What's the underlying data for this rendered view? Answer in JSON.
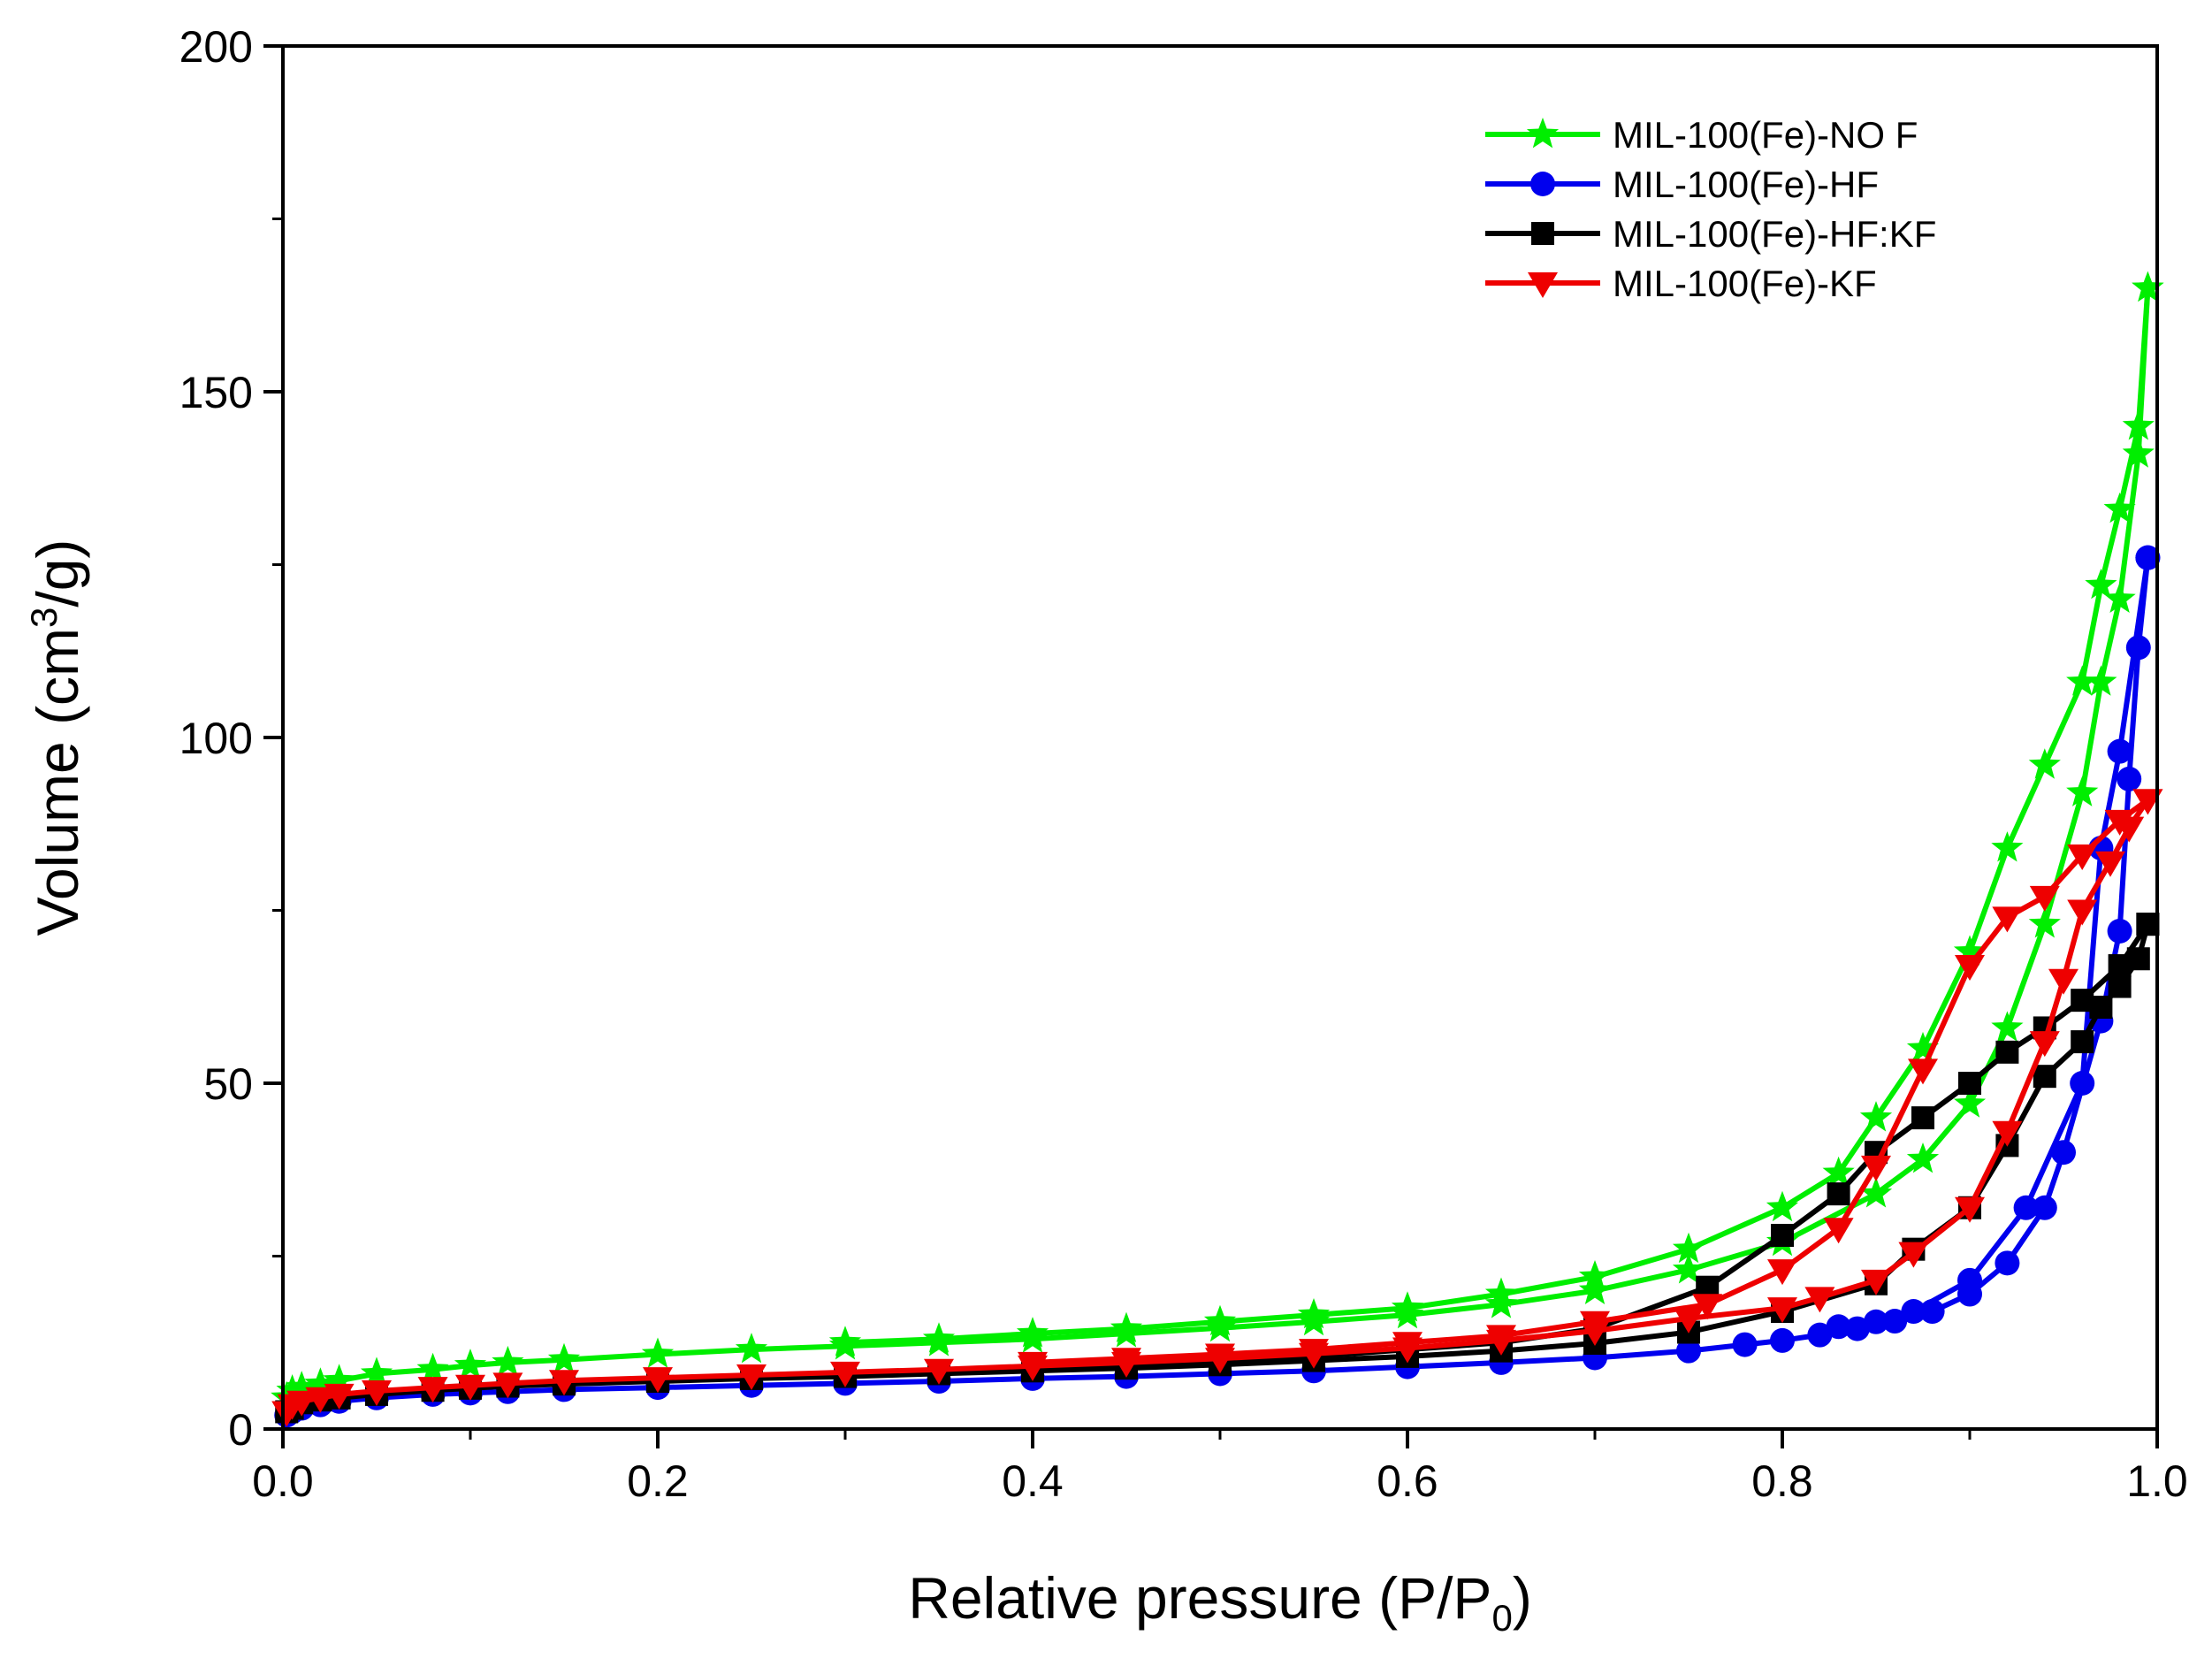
{
  "chart_data": {
    "type": "line",
    "title": "",
    "xlabel": {
      "main": "Relative pressure (P/P",
      "sub": "0",
      "tail": ")"
    },
    "ylabel": {
      "main": "Volume (cm",
      "sup": "3",
      "tail": "/g)"
    },
    "xlim": [
      0,
      1.0
    ],
    "ylim": [
      0,
      200
    ],
    "xticks": [
      0.0,
      0.2,
      0.4,
      0.6,
      0.8,
      1.0
    ],
    "xtick_labels": [
      "0.0",
      "0.2",
      "0.4",
      "0.6",
      "0.8",
      "1.0"
    ],
    "yticks": [
      0,
      50,
      100,
      150,
      200
    ],
    "ytick_labels": [
      "0",
      "50",
      "100",
      "150",
      "200"
    ],
    "grid": false,
    "legend_position": "top-right",
    "series": [
      {
        "name": "MIL-100(Fe)-NO F",
        "color": "#00ee00",
        "marker": "star",
        "adsorption": [
          [
            0.002,
            4.5
          ],
          [
            0.005,
            5.5
          ],
          [
            0.01,
            6.0
          ],
          [
            0.02,
            6.5
          ],
          [
            0.03,
            7.0
          ],
          [
            0.05,
            8.0
          ],
          [
            0.08,
            8.6
          ],
          [
            0.1,
            9.2
          ],
          [
            0.12,
            9.6
          ],
          [
            0.15,
            10.0
          ],
          [
            0.2,
            10.8
          ],
          [
            0.25,
            11.5
          ],
          [
            0.3,
            12.0
          ],
          [
            0.35,
            12.5
          ],
          [
            0.4,
            13.0
          ],
          [
            0.45,
            13.8
          ],
          [
            0.5,
            14.6
          ],
          [
            0.55,
            15.5
          ],
          [
            0.6,
            16.5
          ],
          [
            0.65,
            18.0
          ],
          [
            0.7,
            20.0
          ],
          [
            0.75,
            23.0
          ],
          [
            0.8,
            27.0
          ],
          [
            0.85,
            34.0
          ],
          [
            0.875,
            39.0
          ],
          [
            0.9,
            47.0
          ],
          [
            0.92,
            58.0
          ],
          [
            0.94,
            73.0
          ],
          [
            0.96,
            92.0
          ],
          [
            0.97,
            108.0
          ],
          [
            0.98,
            120.0
          ],
          [
            0.99,
            141.0
          ],
          [
            0.995,
            165.0
          ]
        ],
        "desorption": [
          [
            0.995,
            165.0
          ],
          [
            0.99,
            145.0
          ],
          [
            0.98,
            133.0
          ],
          [
            0.97,
            122.0
          ],
          [
            0.96,
            108.0
          ],
          [
            0.94,
            96.0
          ],
          [
            0.92,
            84.0
          ],
          [
            0.9,
            69.0
          ],
          [
            0.875,
            55.0
          ],
          [
            0.85,
            45.0
          ],
          [
            0.83,
            37.0
          ],
          [
            0.8,
            32.0
          ],
          [
            0.75,
            26.0
          ],
          [
            0.7,
            22.0
          ],
          [
            0.65,
            19.5
          ],
          [
            0.6,
            17.5
          ],
          [
            0.55,
            16.5
          ],
          [
            0.5,
            15.5
          ],
          [
            0.45,
            14.5
          ],
          [
            0.4,
            13.8
          ],
          [
            0.35,
            13.0
          ],
          [
            0.3,
            12.5
          ]
        ]
      },
      {
        "name": "MIL-100(Fe)-HF",
        "color": "#0000ee",
        "marker": "circle",
        "adsorption": [
          [
            0.002,
            2.0
          ],
          [
            0.005,
            2.5
          ],
          [
            0.01,
            3.0
          ],
          [
            0.02,
            3.5
          ],
          [
            0.03,
            4.0
          ],
          [
            0.05,
            4.5
          ],
          [
            0.08,
            5.0
          ],
          [
            0.1,
            5.2
          ],
          [
            0.12,
            5.4
          ],
          [
            0.15,
            5.7
          ],
          [
            0.2,
            6.0
          ],
          [
            0.25,
            6.3
          ],
          [
            0.3,
            6.6
          ],
          [
            0.35,
            6.9
          ],
          [
            0.4,
            7.3
          ],
          [
            0.45,
            7.6
          ],
          [
            0.5,
            8.0
          ],
          [
            0.55,
            8.4
          ],
          [
            0.6,
            9.0
          ],
          [
            0.65,
            9.6
          ],
          [
            0.7,
            10.3
          ],
          [
            0.75,
            11.3
          ],
          [
            0.78,
            12.2
          ],
          [
            0.8,
            12.8
          ],
          [
            0.82,
            13.6
          ],
          [
            0.84,
            14.5
          ],
          [
            0.86,
            15.6
          ],
          [
            0.88,
            17.0
          ],
          [
            0.9,
            19.5
          ],
          [
            0.92,
            24.0
          ],
          [
            0.94,
            32.0
          ],
          [
            0.95,
            40.0
          ],
          [
            0.97,
            59.0
          ],
          [
            0.98,
            72.0
          ],
          [
            0.985,
            94.0
          ],
          [
            0.99,
            113.0
          ],
          [
            0.995,
            126.0
          ]
        ],
        "desorption": [
          [
            0.995,
            126.0
          ],
          [
            0.98,
            98.0
          ],
          [
            0.97,
            84.0
          ],
          [
            0.96,
            50.0
          ],
          [
            0.93,
            32.0
          ],
          [
            0.9,
            21.5
          ],
          [
            0.87,
            17.0
          ],
          [
            0.85,
            15.5
          ],
          [
            0.83,
            14.8
          ]
        ]
      },
      {
        "name": "MIL-100(Fe)-HF:KF",
        "color": "#000000",
        "marker": "square",
        "adsorption": [
          [
            0.002,
            2.5
          ],
          [
            0.005,
            3.0
          ],
          [
            0.01,
            3.8
          ],
          [
            0.02,
            4.2
          ],
          [
            0.03,
            4.5
          ],
          [
            0.05,
            5.0
          ],
          [
            0.08,
            5.6
          ],
          [
            0.1,
            5.9
          ],
          [
            0.12,
            6.2
          ],
          [
            0.15,
            6.5
          ],
          [
            0.2,
            6.9
          ],
          [
            0.25,
            7.3
          ],
          [
            0.3,
            7.6
          ],
          [
            0.35,
            8.0
          ],
          [
            0.4,
            8.4
          ],
          [
            0.45,
            8.8
          ],
          [
            0.5,
            9.3
          ],
          [
            0.55,
            9.9
          ],
          [
            0.6,
            10.5
          ],
          [
            0.65,
            11.3
          ],
          [
            0.7,
            12.4
          ],
          [
            0.75,
            14.0
          ],
          [
            0.8,
            17.0
          ],
          [
            0.85,
            21.0
          ],
          [
            0.87,
            26.0
          ],
          [
            0.9,
            32.0
          ],
          [
            0.92,
            41.0
          ],
          [
            0.94,
            51.0
          ],
          [
            0.96,
            56.0
          ],
          [
            0.97,
            61.0
          ],
          [
            0.98,
            64.0
          ],
          [
            0.99,
            68.0
          ],
          [
            0.995,
            73.0
          ]
        ],
        "desorption": [
          [
            0.995,
            73.0
          ],
          [
            0.98,
            67.0
          ],
          [
            0.96,
            62.0
          ],
          [
            0.94,
            58.0
          ],
          [
            0.92,
            54.5
          ],
          [
            0.9,
            50.0
          ],
          [
            0.875,
            45.0
          ],
          [
            0.85,
            40.0
          ],
          [
            0.83,
            34.0
          ],
          [
            0.8,
            28.0
          ],
          [
            0.76,
            20.5
          ],
          [
            0.7,
            14.5
          ],
          [
            0.65,
            12.5
          ],
          [
            0.6,
            11.5
          ],
          [
            0.55,
            10.5
          ],
          [
            0.5,
            9.8
          ],
          [
            0.45,
            9.2
          ],
          [
            0.4,
            8.7
          ]
        ]
      },
      {
        "name": "MIL-100(Fe)-KF",
        "color": "#ee0000",
        "marker": "triangle-down",
        "adsorption": [
          [
            0.002,
            2.5
          ],
          [
            0.005,
            3.5
          ],
          [
            0.01,
            4.0
          ],
          [
            0.02,
            4.5
          ],
          [
            0.03,
            5.0
          ],
          [
            0.05,
            5.5
          ],
          [
            0.08,
            6.0
          ],
          [
            0.1,
            6.3
          ],
          [
            0.12,
            6.6
          ],
          [
            0.15,
            7.0
          ],
          [
            0.2,
            7.4
          ],
          [
            0.25,
            7.8
          ],
          [
            0.3,
            8.2
          ],
          [
            0.35,
            8.6
          ],
          [
            0.4,
            9.1
          ],
          [
            0.45,
            9.6
          ],
          [
            0.5,
            10.2
          ],
          [
            0.55,
            10.9
          ],
          [
            0.6,
            11.7
          ],
          [
            0.65,
            12.8
          ],
          [
            0.7,
            14.2
          ],
          [
            0.75,
            16.0
          ],
          [
            0.8,
            17.5
          ],
          [
            0.82,
            19.0
          ],
          [
            0.85,
            21.5
          ],
          [
            0.87,
            25.5
          ],
          [
            0.9,
            32.0
          ],
          [
            0.92,
            43.0
          ],
          [
            0.94,
            56.0
          ],
          [
            0.95,
            65.0
          ],
          [
            0.96,
            75.0
          ],
          [
            0.975,
            82.0
          ],
          [
            0.985,
            87.0
          ],
          [
            0.995,
            91.0
          ]
        ],
        "desorption": [
          [
            0.995,
            91.0
          ],
          [
            0.98,
            88.0
          ],
          [
            0.96,
            83.0
          ],
          [
            0.94,
            77.0
          ],
          [
            0.92,
            74.0
          ],
          [
            0.9,
            67.0
          ],
          [
            0.875,
            52.0
          ],
          [
            0.85,
            38.0
          ],
          [
            0.83,
            29.0
          ],
          [
            0.8,
            23.0
          ],
          [
            0.76,
            18.0
          ],
          [
            0.7,
            15.5
          ],
          [
            0.65,
            13.5
          ],
          [
            0.6,
            12.5
          ],
          [
            0.55,
            11.5
          ],
          [
            0.5,
            10.8
          ],
          [
            0.45,
            10.2
          ],
          [
            0.4,
            9.6
          ]
        ]
      }
    ]
  }
}
